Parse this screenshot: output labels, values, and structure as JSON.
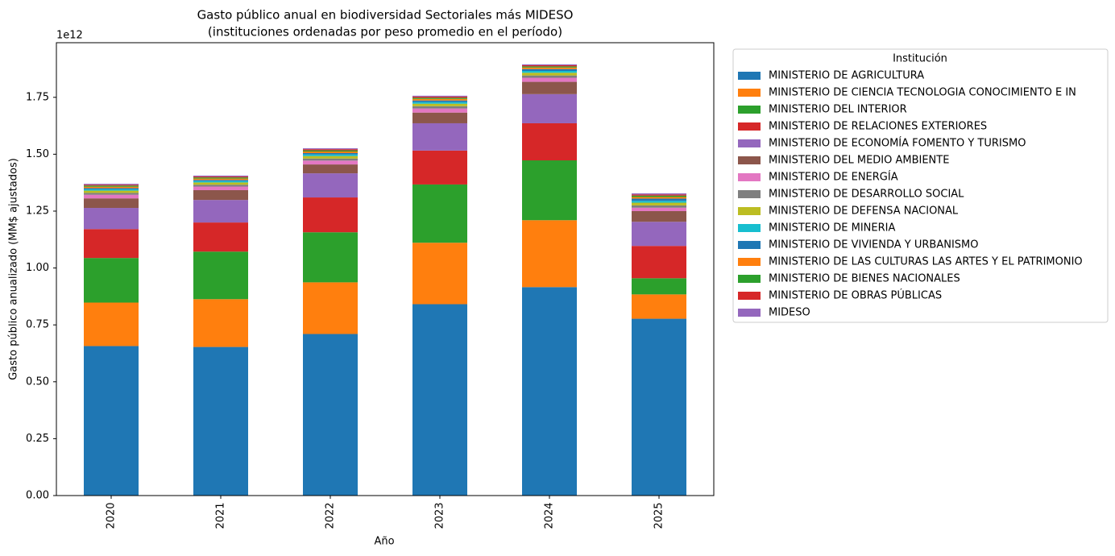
{
  "chart_data": {
    "type": "stacked_bar",
    "title": "Gasto público anual en biodiversidad Sectoriales más MIDESO",
    "subtitle": "(instituciones ordenadas por peso promedio en el período)",
    "x_label": "Año",
    "y_label": "Gasto público anualizado (MM$ ajustados)",
    "y_offset_label": "1e12",
    "legend_title": "Institución",
    "legend": "outside-upper-right",
    "grid": false,
    "categories": [
      "2020",
      "2021",
      "2022",
      "2023",
      "2024",
      "2025"
    ],
    "ylim": [
      0,
      1.99
    ],
    "yticks": [
      {
        "value": 0,
        "label": "0.00"
      },
      0.25,
      {
        "value": 0.5,
        "label": "0.50"
      },
      0.75,
      {
        "value": 1,
        "label": "1.00"
      },
      1.25,
      {
        "value": 1.5,
        "label": "1.50"
      },
      1.75
    ],
    "series": [
      {
        "name": "MINISTERIO DE AGRICULTURA",
        "color": "#1f77b4",
        "values": [
          0.657,
          0.653,
          0.71,
          0.841,
          0.916,
          0.777
        ]
      },
      {
        "name": "MINISTERIO DE CIENCIA TECNOLOGIA CONOCIMIENTO E IN",
        "color": "#ff7f0e",
        "values": [
          0.191,
          0.21,
          0.227,
          0.27,
          0.294,
          0.107
        ]
      },
      {
        "name": "MINISTERIO DEL INTERIOR",
        "color": "#2ca02c",
        "values": [
          0.196,
          0.209,
          0.22,
          0.256,
          0.263,
          0.071
        ]
      },
      {
        "name": "MINISTERIO DE RELACIONES EXTERIORES",
        "color": "#d62728",
        "values": [
          0.127,
          0.128,
          0.153,
          0.149,
          0.163,
          0.142
        ]
      },
      {
        "name": "MINISTERIO DE ECONOMÍA FOMENTO Y TURISMO",
        "color": "#9467bd",
        "values": [
          0.093,
          0.099,
          0.106,
          0.12,
          0.128,
          0.106
        ]
      },
      {
        "name": "MINISTERIO DEL MEDIO AMBIENTE",
        "color": "#8c564b",
        "values": [
          0.042,
          0.043,
          0.039,
          0.047,
          0.054,
          0.047
        ]
      },
      {
        "name": "MINISTERIO DE ENERGÍA",
        "color": "#e377c2",
        "values": [
          0.016,
          0.016,
          0.017,
          0.018,
          0.018,
          0.015
        ]
      },
      {
        "name": "MINISTERIO DE DESARROLLO SOCIAL",
        "color": "#7f7f7f",
        "values": [
          0.008,
          0.008,
          0.009,
          0.01,
          0.01,
          0.01
        ]
      },
      {
        "name": "MINISTERIO DE DEFENSA NACIONAL",
        "color": "#bcbd22",
        "values": [
          0.01,
          0.01,
          0.011,
          0.011,
          0.012,
          0.012
        ]
      },
      {
        "name": "MINISTERIO DE MINERIA",
        "color": "#17becf",
        "values": [
          0.006,
          0.006,
          0.007,
          0.007,
          0.008,
          0.008
        ]
      },
      {
        "name": "MINISTERIO DE VIVIENDA Y URBANISMO",
        "color": "#1f77b4",
        "values": [
          0.005,
          0.005,
          0.006,
          0.007,
          0.008,
          0.01
        ]
      },
      {
        "name": "MINISTERIO DE LAS CULTURAS LAS ARTES Y EL PATRIMONIO",
        "color": "#ff7f0e",
        "values": [
          0.006,
          0.006,
          0.007,
          0.007,
          0.007,
          0.007
        ]
      },
      {
        "name": "MINISTERIO DE BIENES NACIONALES",
        "color": "#2ca02c",
        "values": [
          0.005,
          0.005,
          0.005,
          0.005,
          0.005,
          0.006
        ]
      },
      {
        "name": "MINISTERIO DE OBRAS PÚBLICAS",
        "color": "#d62728",
        "values": [
          0.004,
          0.004,
          0.005,
          0.005,
          0.005,
          0.005
        ]
      },
      {
        "name": "MIDESO",
        "color": "#9467bd",
        "values": [
          0.004,
          0.004,
          0.004,
          0.004,
          0.004,
          0.005
        ]
      }
    ]
  }
}
